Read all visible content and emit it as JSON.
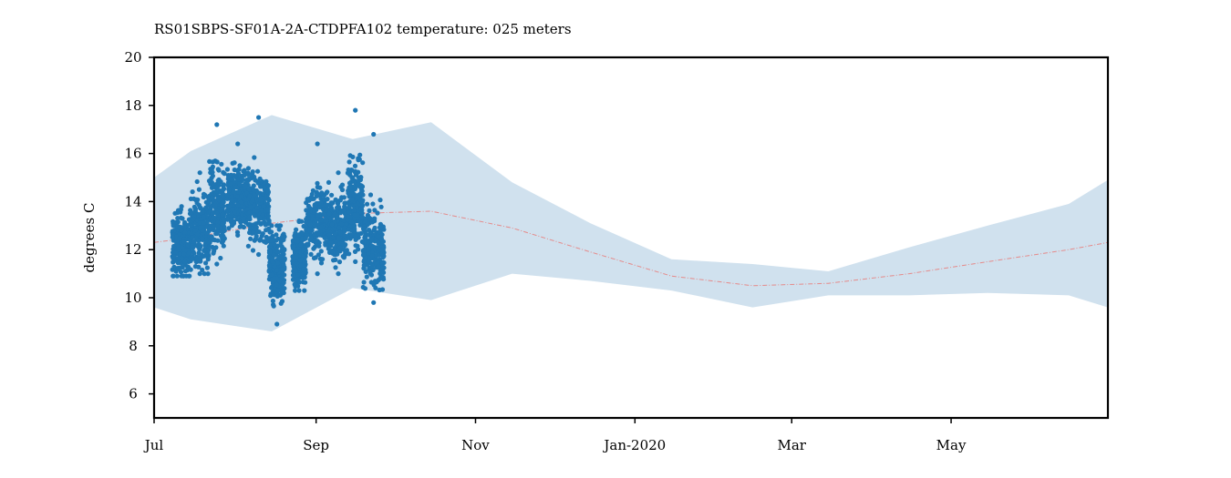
{
  "chart_data": {
    "type": "scatter",
    "title": "RS01SBPS-SF01A-2A-CTDPFA102 temperature: 025 meters",
    "ylabel": "degrees C",
    "xlabel": "",
    "xlim": [
      "2019-07-01",
      "2020-06-30"
    ],
    "ylim": [
      5,
      20
    ],
    "x_ticks": [
      {
        "date": "2019-07-01",
        "label": "Jul"
      },
      {
        "date": "2019-09-01",
        "label": "Sep"
      },
      {
        "date": "2019-11-01",
        "label": "Nov"
      },
      {
        "date": "2020-01-01",
        "label": "Jan-2020"
      },
      {
        "date": "2020-03-01",
        "label": "Mar"
      },
      {
        "date": "2020-05-01",
        "label": "May"
      }
    ],
    "y_ticks": [
      6,
      8,
      10,
      12,
      14,
      16,
      18,
      20
    ],
    "grid": false,
    "series": [
      {
        "kind": "band",
        "color": "#d0e1ee",
        "points": [
          {
            "x": "2019-07-01",
            "low": 9.6,
            "high": 15.0
          },
          {
            "x": "2019-07-15",
            "low": 9.1,
            "high": 16.1
          },
          {
            "x": "2019-08-15",
            "low": 8.6,
            "high": 17.6
          },
          {
            "x": "2019-09-15",
            "low": 10.4,
            "high": 16.6
          },
          {
            "x": "2019-10-15",
            "low": 9.9,
            "high": 17.3
          },
          {
            "x": "2019-11-15",
            "low": 11.0,
            "high": 14.8
          },
          {
            "x": "2019-12-15",
            "low": 10.7,
            "high": 13.1
          },
          {
            "x": "2020-01-15",
            "low": 10.3,
            "high": 11.6
          },
          {
            "x": "2020-02-15",
            "low": 9.6,
            "high": 11.4
          },
          {
            "x": "2020-03-15",
            "low": 10.1,
            "high": 11.1
          },
          {
            "x": "2020-04-15",
            "low": 10.1,
            "high": 12.1
          },
          {
            "x": "2020-05-15",
            "low": 10.2,
            "high": 13.0
          },
          {
            "x": "2020-06-15",
            "low": 10.1,
            "high": 13.9
          },
          {
            "x": "2020-06-30",
            "low": 9.6,
            "high": 14.9
          }
        ]
      },
      {
        "kind": "dashed-line",
        "color": "#e58a8a",
        "points": [
          {
            "x": "2019-07-01",
            "y": 12.3
          },
          {
            "x": "2019-07-15",
            "y": 12.5
          },
          {
            "x": "2019-08-15",
            "y": 13.1
          },
          {
            "x": "2019-09-15",
            "y": 13.5
          },
          {
            "x": "2019-10-15",
            "y": 13.6
          },
          {
            "x": "2019-11-15",
            "y": 12.9
          },
          {
            "x": "2019-12-15",
            "y": 11.9
          },
          {
            "x": "2020-01-15",
            "y": 10.9
          },
          {
            "x": "2020-02-15",
            "y": 10.5
          },
          {
            "x": "2020-03-15",
            "y": 10.6
          },
          {
            "x": "2020-04-15",
            "y": 11.0
          },
          {
            "x": "2020-05-15",
            "y": 11.5
          },
          {
            "x": "2020-06-15",
            "y": 12.0
          },
          {
            "x": "2020-06-30",
            "y": 12.3
          }
        ]
      },
      {
        "kind": "scatter",
        "color": "#1f77b4",
        "segments": [
          {
            "start": "2019-07-08",
            "end": "2019-07-15",
            "mid": 12.2,
            "spread": 0.9,
            "min": 10.9,
            "max": 13.8
          },
          {
            "start": "2019-07-15",
            "end": "2019-07-22",
            "mid": 12.8,
            "spread": 1.1,
            "min": 11.0,
            "max": 15.2
          },
          {
            "start": "2019-07-22",
            "end": "2019-07-28",
            "mid": 13.6,
            "spread": 1.2,
            "min": 11.4,
            "max": 17.2
          },
          {
            "start": "2019-07-29",
            "end": "2019-08-06",
            "mid": 14.2,
            "spread": 0.9,
            "min": 12.6,
            "max": 16.4
          },
          {
            "start": "2019-08-06",
            "end": "2019-08-14",
            "mid": 13.8,
            "spread": 1.0,
            "min": 11.8,
            "max": 17.5
          },
          {
            "start": "2019-08-14",
            "end": "2019-08-20",
            "mid": 11.4,
            "spread": 1.0,
            "min": 8.9,
            "max": 13.0
          },
          {
            "start": "2019-08-23",
            "end": "2019-08-28",
            "mid": 11.6,
            "spread": 0.8,
            "min": 10.3,
            "max": 13.2
          },
          {
            "start": "2019-08-28",
            "end": "2019-09-06",
            "mid": 13.2,
            "spread": 1.0,
            "min": 11.0,
            "max": 16.4
          },
          {
            "start": "2019-09-06",
            "end": "2019-09-13",
            "mid": 12.9,
            "spread": 0.9,
            "min": 11.0,
            "max": 15.2
          },
          {
            "start": "2019-09-13",
            "end": "2019-09-19",
            "mid": 13.9,
            "spread": 1.3,
            "min": 11.5,
            "max": 17.8
          },
          {
            "start": "2019-09-19",
            "end": "2019-09-27",
            "mid": 12.0,
            "spread": 1.1,
            "min": 9.8,
            "max": 16.8
          }
        ]
      }
    ]
  }
}
